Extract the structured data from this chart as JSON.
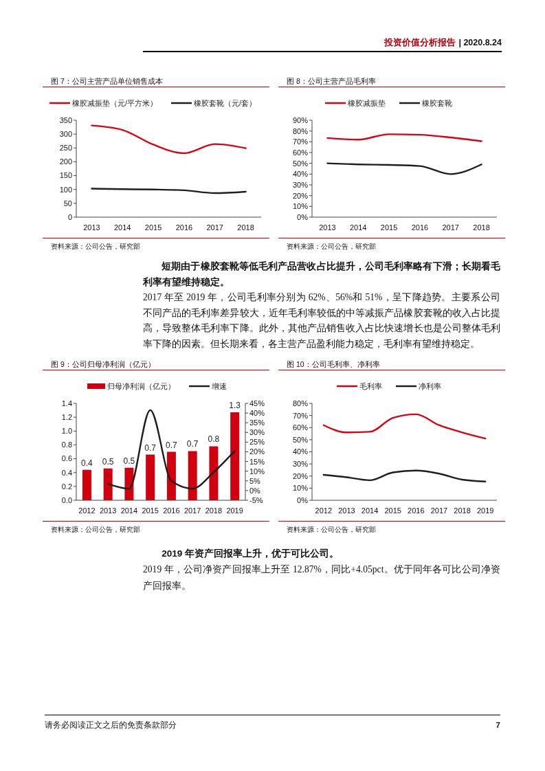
{
  "chart_data": [
    {
      "type": "line",
      "title": "图 7：公司主营产品单位销售成本",
      "categories": [
        "2013",
        "2014",
        "2015",
        "2016",
        "2017",
        "2018"
      ],
      "series": [
        {
          "name": "橡胶减振垫（元/平方米）",
          "color": "#dc0014",
          "values": [
            331,
            315,
            262,
            231,
            264,
            249
          ]
        },
        {
          "name": "橡胶套靴（元/套）",
          "color": "#1e1e1e",
          "values": [
            103,
            101,
            100,
            97,
            87,
            92
          ]
        }
      ],
      "ylim": [
        0,
        350
      ],
      "yticks": [
        0,
        50,
        100,
        150,
        200,
        250,
        300,
        350
      ],
      "legend": "top",
      "annotations": [
        "资料来源：公司公告，研究部",
        "投资价值分析报告",
        "| 2020.8.24"
      ]
    },
    {
      "type": "line",
      "title": "图 8：公司主营产品毛利率",
      "categories": [
        "2013",
        "2014",
        "2015",
        "2016",
        "2017",
        "2018"
      ],
      "series": [
        {
          "name": "橡胶减振垫",
          "color": "#dc0014",
          "values": [
            73.5,
            72,
            77,
            76.5,
            74,
            70.5
          ]
        },
        {
          "name": "橡胶套靴",
          "color": "#1e1e1e",
          "values": [
            50,
            49,
            48.5,
            47.5,
            40,
            49
          ]
        }
      ],
      "ylim": [
        0,
        90
      ],
      "yticks": [
        {
          "value": 0,
          "label": "0%"
        },
        {
          "value": 10,
          "label": "10%"
        },
        {
          "value": 20,
          "label": "20%"
        },
        {
          "value": 30,
          "label": "30%"
        },
        {
          "value": 40,
          "label": "40%"
        },
        {
          "value": 50,
          "label": "50%"
        },
        {
          "value": 60,
          "label": "60%"
        },
        {
          "value": 70,
          "label": "70%"
        },
        {
          "value": 80,
          "label": "80%"
        },
        {
          "value": 90,
          "label": "90%"
        }
      ],
      "legend": "top",
      "annotations": [
        "资料来源：公司公告，研究部",
        "短期由于橡胶套靴等低毛利产品营收占比提升，公司毛利率略有下滑；长期看毛利率有望维持稳定。",
        "2017 年至 2019 年，公司毛利率分别为 62%、56%和 51%，呈下降趋势。主要系公司不同产品的毛利率差异较大，近年毛利率较低的中等减振产品橡胶套靴的收入占比提高，导致整体毛利率下降。此外，其他产品销售收入占比快速增长也是公司整体毛利率下降的因素。但长期来看，各主营产品盈利能力稳定，毛利率有望维持稳定。"
      ]
    },
    {
      "type": "bar",
      "title": "图 9：公司归母净利润（亿元）",
      "categories": [
        "2012",
        "2013",
        "2014",
        "2015",
        "2016",
        "2017",
        "2018",
        "2019"
      ],
      "series": [
        {
          "name": "归母净利润（亿元）",
          "color": "#d0000e",
          "values": [
            0.44,
            0.46,
            0.47,
            0.66,
            0.7,
            0.71,
            0.78,
            1.27
          ],
          "value_labels": [
            "0.4",
            "0.5",
            "0.5",
            "0.7",
            "0.7",
            "0.7",
            "0.8",
            "1.3"
          ]
        },
        {
          "name": "增速",
          "type": "line",
          "axis": "y2",
          "color": "#1e1e1e",
          "values": [
            null,
            3.5,
            1,
            41.5,
            5,
            1,
            9.5,
            20.5
          ]
        }
      ],
      "ylim": [
        0,
        1.4
      ],
      "yticks": [
        {
          "value": 0,
          "label": "0.0"
        },
        0.2,
        0.4,
        0.6,
        0.8,
        {
          "value": 1,
          "label": "1.0"
        },
        1.2,
        1.4
      ],
      "y2lim": [
        -5,
        45
      ],
      "y2ticks": [
        {
          "value": -5,
          "label": "-5%"
        },
        {
          "value": 0,
          "label": "0%"
        },
        {
          "value": 5,
          "label": "5%"
        },
        {
          "value": 10,
          "label": "10%"
        },
        {
          "value": 15,
          "label": "15%"
        },
        {
          "value": 20,
          "label": "20%"
        },
        {
          "value": 25,
          "label": "25%"
        },
        {
          "value": 30,
          "label": "30%"
        },
        {
          "value": 35,
          "label": "35%"
        },
        {
          "value": 40,
          "label": "40%"
        },
        {
          "value": 45,
          "label": "45%"
        }
      ],
      "legend": "top",
      "annotations": [
        "资料来源：公司公告，研究部"
      ]
    },
    {
      "type": "line",
      "title": "图 10：公司毛利率、净利率",
      "categories": [
        "2012",
        "2013",
        "2014",
        "2015",
        "2016",
        "2017",
        "2018",
        "2019"
      ],
      "series": [
        {
          "name": "毛利率",
          "color": "#dc0014",
          "values": [
            62,
            56,
            56.5,
            68,
            71,
            62,
            56,
            51
          ]
        },
        {
          "name": "净利率",
          "color": "#1e1e1e",
          "values": [
            21,
            19,
            16.5,
            23,
            24.5,
            22,
            17,
            15.5
          ]
        }
      ],
      "ylim": [
        0,
        80
      ],
      "yticks": [
        {
          "value": 0,
          "label": "0%"
        },
        {
          "value": 10,
          "label": "10%"
        },
        {
          "value": 20,
          "label": "20%"
        },
        {
          "value": 30,
          "label": "30%"
        },
        {
          "value": 40,
          "label": "40%"
        },
        {
          "value": 50,
          "label": "50%"
        },
        {
          "value": 60,
          "label": "60%"
        },
        {
          "value": 70,
          "label": "70%"
        },
        {
          "value": 80,
          "label": "80%"
        }
      ],
      "legend": "top",
      "annotations": [
        "资料来源：公司公告，研究部",
        "2019 年资产回报率上升，优于可比公司。",
        "2019 年，公司净资产回报率上升至 12.87%，同比+4.05pct。优于同年各可比公司净资产回报率。",
        "请务必阅读正文之后的免责条款部分",
        "7"
      ]
    }
  ]
}
